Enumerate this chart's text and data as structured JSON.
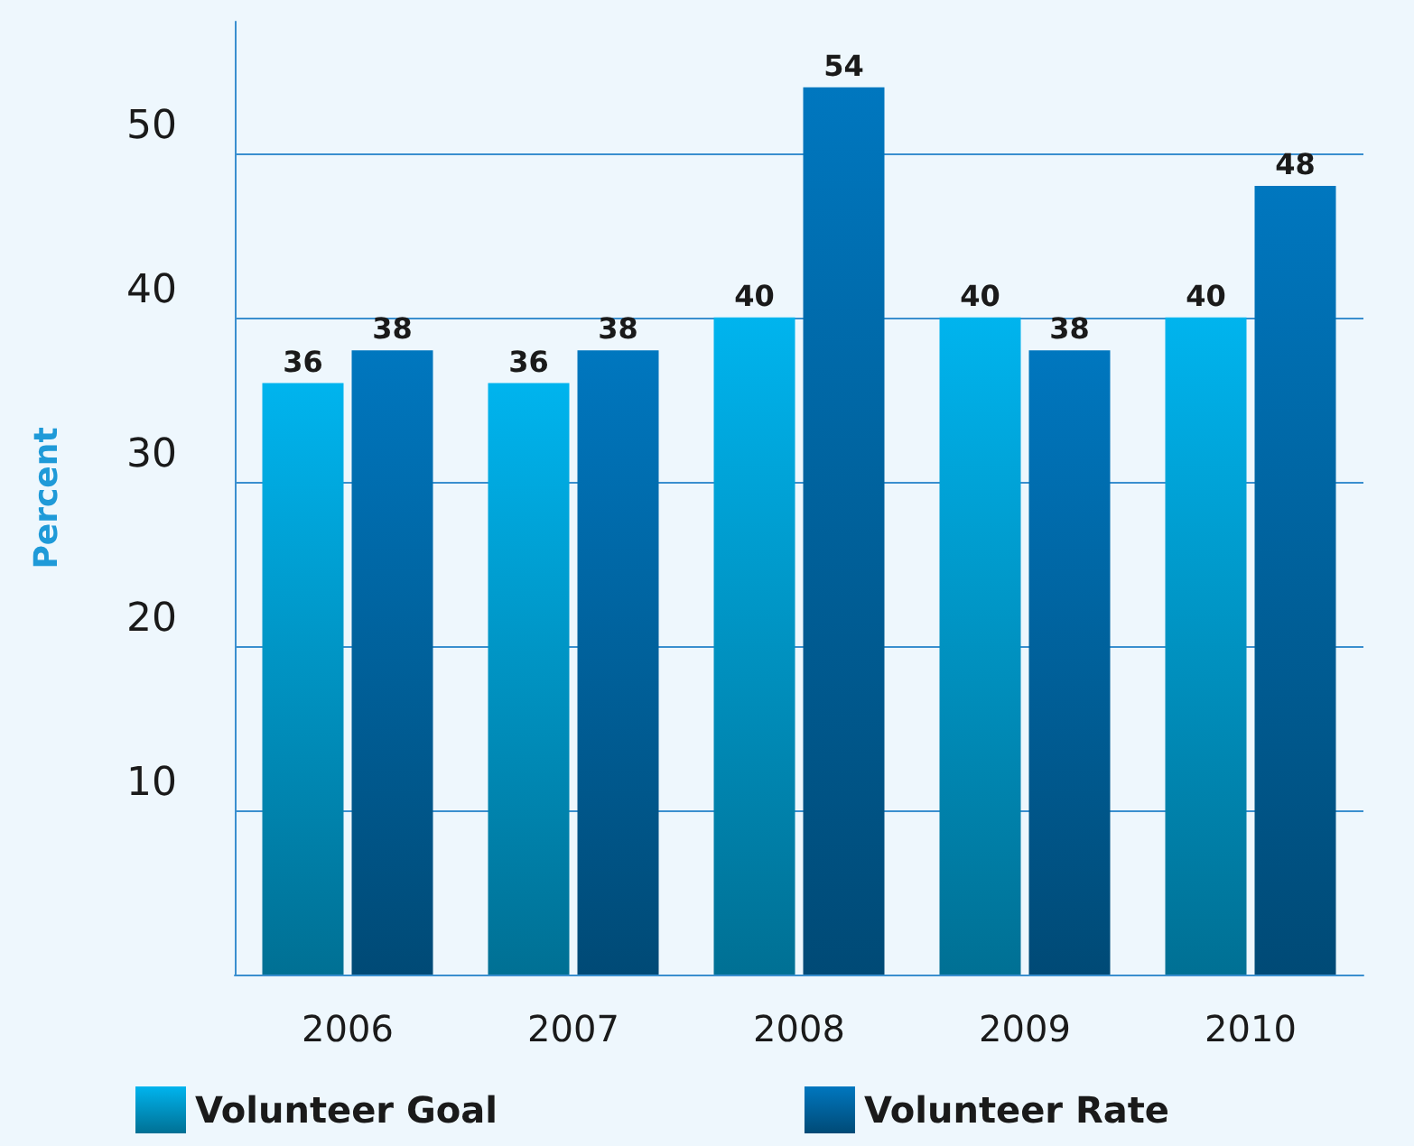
{
  "chart_data": {
    "type": "bar",
    "ylabel": "Percent",
    "categories": [
      "2006",
      "2007",
      "2008",
      "2009",
      "2010"
    ],
    "series": [
      {
        "name": "Volunteer Goal",
        "color": "#00b4ee",
        "values": [
          36,
          36,
          40,
          40,
          40
        ]
      },
      {
        "name": "Volunteer Rate",
        "color": "#0077bf",
        "values": [
          38,
          38,
          54,
          38,
          48
        ]
      }
    ],
    "ylim": [
      0,
      58
    ],
    "yticks": [
      {
        "value": 0,
        "label": null
      },
      10,
      20,
      30,
      40,
      50
    ],
    "grid": "y",
    "legend": "bottom left",
    "data_labels": true
  }
}
